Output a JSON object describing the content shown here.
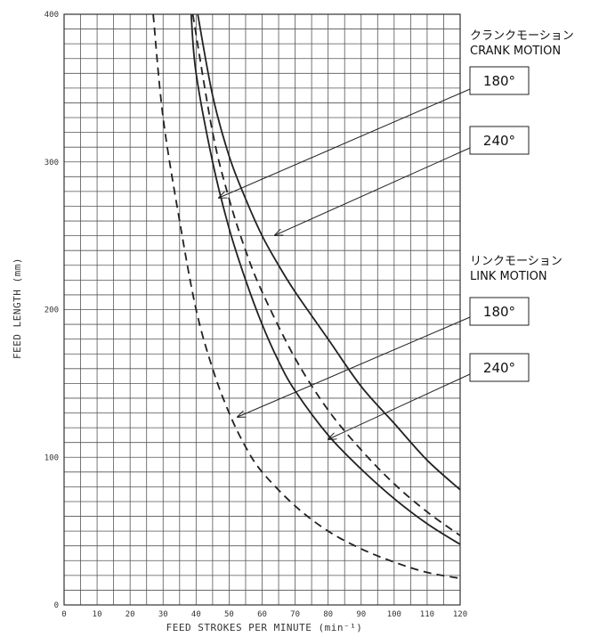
{
  "chart_data": {
    "type": "line",
    "xlabel": "FEED STROKES PER MINUTE (min⁻¹)",
    "ylabel": "FEED LENGTH (mm)",
    "xlim": [
      0,
      120
    ],
    "ylim": [
      0,
      400
    ],
    "xticks": [
      0,
      10,
      20,
      30,
      40,
      50,
      60,
      70,
      80,
      90,
      100,
      110,
      120
    ],
    "yticks": [
      0,
      100,
      200,
      300,
      400
    ],
    "grid": true,
    "groups": [
      {
        "title_ja": "クランクモーション",
        "title_en": "CRANK MOTION",
        "callouts": [
          "180°",
          "240°"
        ]
      },
      {
        "title_ja": "リンクモーション",
        "title_en": "LINK MOTION",
        "callouts": [
          "180°",
          "240°"
        ]
      }
    ],
    "series": [
      {
        "style": "solid",
        "points": [
          [
            38.5,
            400
          ],
          [
            40,
            360
          ],
          [
            45,
            300
          ],
          [
            50,
            255
          ],
          [
            55,
            220
          ],
          [
            60,
            190
          ],
          [
            65,
            165
          ],
          [
            70,
            145
          ],
          [
            80,
            115
          ],
          [
            90,
            92
          ],
          [
            100,
            72
          ],
          [
            110,
            55
          ],
          [
            120,
            41
          ]
        ]
      },
      {
        "style": "solid",
        "points": [
          [
            40.5,
            400
          ],
          [
            45,
            345
          ],
          [
            50,
            304
          ],
          [
            55,
            275
          ],
          [
            60,
            250
          ],
          [
            65,
            230
          ],
          [
            70,
            212
          ],
          [
            80,
            180
          ],
          [
            90,
            148
          ],
          [
            100,
            123
          ],
          [
            110,
            98
          ],
          [
            120,
            78
          ]
        ]
      },
      {
        "style": "dashed",
        "points": [
          [
            39,
            400
          ],
          [
            45,
            320
          ],
          [
            50,
            275
          ],
          [
            55,
            240
          ],
          [
            60,
            212
          ],
          [
            70,
            167
          ],
          [
            80,
            132
          ],
          [
            90,
            105
          ],
          [
            100,
            82
          ],
          [
            110,
            63
          ],
          [
            120,
            47
          ]
        ]
      },
      {
        "style": "dashed",
        "points": [
          [
            27,
            400
          ],
          [
            30,
            330
          ],
          [
            35,
            260
          ],
          [
            40,
            200
          ],
          [
            45,
            160
          ],
          [
            50,
            130
          ],
          [
            55,
            107
          ],
          [
            60,
            90
          ],
          [
            70,
            67
          ],
          [
            80,
            50
          ],
          [
            90,
            38
          ],
          [
            100,
            29
          ],
          [
            110,
            22
          ],
          [
            120,
            18
          ]
        ]
      }
    ]
  }
}
